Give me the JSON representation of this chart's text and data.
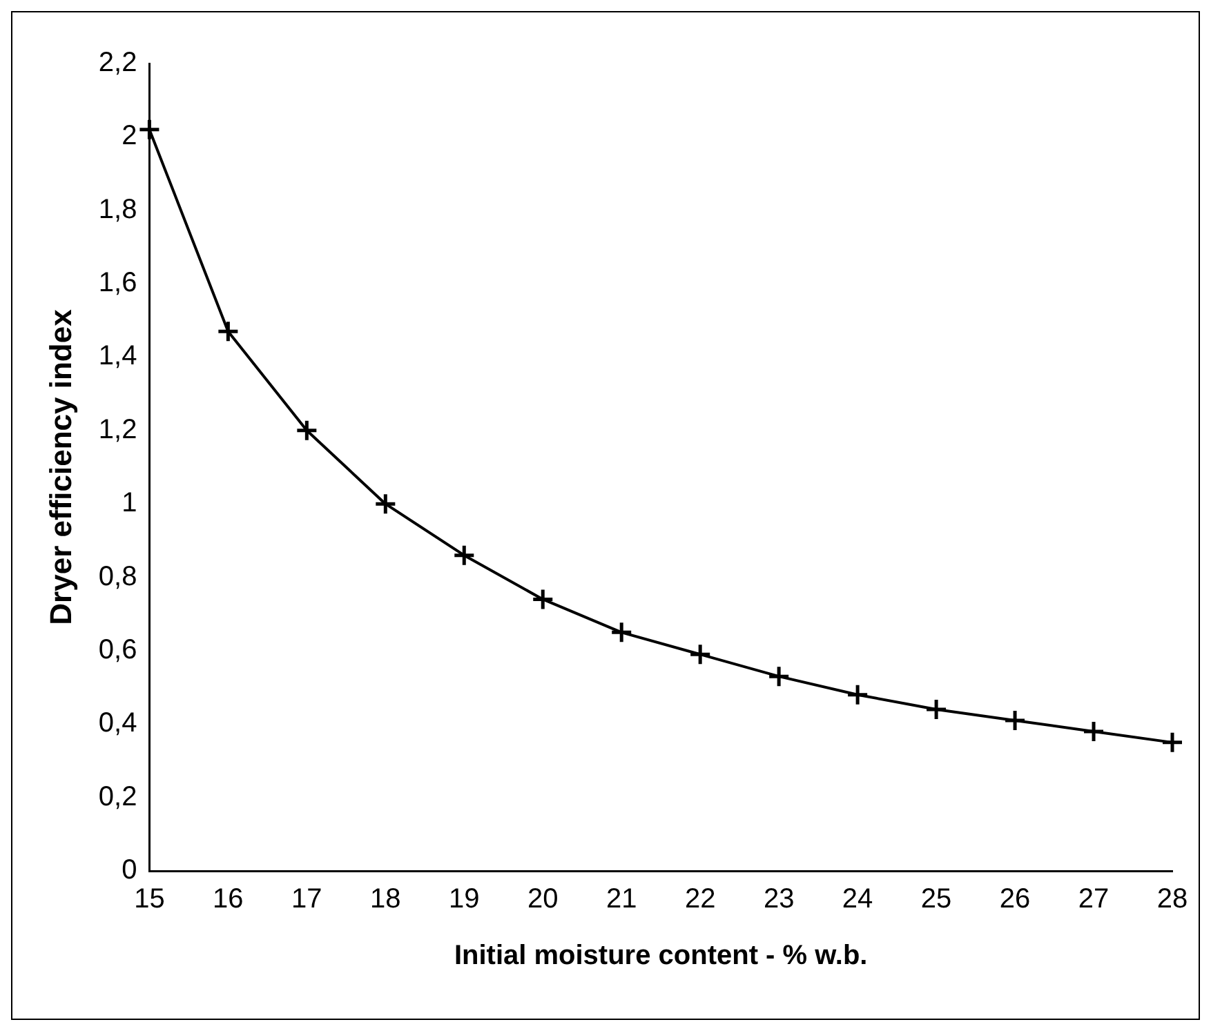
{
  "chart_data": {
    "type": "line",
    "xlabel": "Initial moisture content - % w.b.",
    "ylabel": "Dryer efficiency index",
    "categories": [
      "15",
      "16",
      "17",
      "18",
      "19",
      "20",
      "21",
      "22",
      "23",
      "24",
      "25",
      "26",
      "27",
      "28"
    ],
    "series": [
      {
        "color": "#000000",
        "values": [
          2.02,
          1.47,
          1.2,
          1.0,
          0.86,
          0.74,
          0.65,
          0.59,
          0.53,
          0.48,
          0.44,
          0.41,
          0.38,
          0.35
        ]
      }
    ],
    "ylim": [
      0,
      2.2
    ],
    "yticks": [
      {
        "value": 0,
        "label": "0"
      },
      {
        "value": 0.2,
        "label": "0,2"
      },
      {
        "value": 0.4,
        "label": "0,4"
      },
      {
        "value": 0.6,
        "label": "0,6"
      },
      {
        "value": 0.8,
        "label": "0,8"
      },
      {
        "value": 1,
        "label": "1"
      },
      {
        "value": 1.2,
        "label": "1,2"
      },
      {
        "value": 1.4,
        "label": "1,4"
      },
      {
        "value": 1.6,
        "label": "1,6"
      },
      {
        "value": 1.8,
        "label": "1,8"
      },
      {
        "value": 2,
        "label": "2"
      },
      {
        "value": 2.2,
        "label": "2,2"
      }
    ],
    "grid": false,
    "legend": false,
    "marker": "cross",
    "line_style": "solid"
  }
}
